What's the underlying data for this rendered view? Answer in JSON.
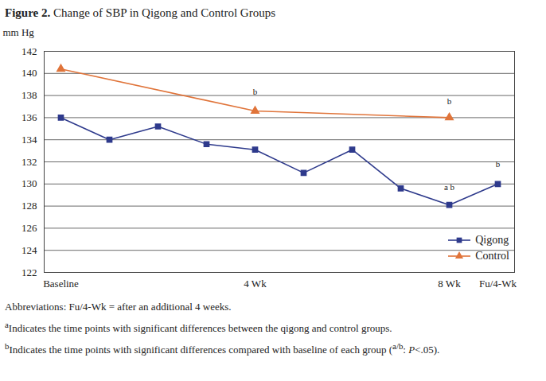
{
  "chart_data": {
    "type": "line",
    "title": [
      {
        "bold": "Figure 2."
      },
      {
        "text": " Change of SBP in Qigong and Control Groups"
      }
    ],
    "y_label": "mm Hg",
    "categories": [
      "Baseline",
      null,
      null,
      null,
      "4 Wk",
      null,
      null,
      null,
      "8 Wk",
      "Fu/4-Wk"
    ],
    "series": [
      {
        "name": "Qigong",
        "color": "#2e3a8c",
        "marker": "square",
        "values": [
          136,
          134,
          135.2,
          133.6,
          133.1,
          131,
          133.1,
          129.6,
          128.1,
          130
        ]
      },
      {
        "name": "Control",
        "color": "#e0743a",
        "marker": "triangle",
        "values": [
          140.4,
          null,
          null,
          null,
          136.6,
          null,
          null,
          null,
          136,
          null
        ]
      }
    ],
    "ylim": [
      122,
      142
    ],
    "yticks": [
      122,
      124,
      126,
      128,
      130,
      132,
      134,
      136,
      138,
      140,
      142
    ],
    "grid": true,
    "legend": "bottom-right",
    "annotations": [
      {
        "text": "b",
        "x": 4,
        "y": 138.3
      },
      {
        "text": "b",
        "x": 8,
        "y": 137.5
      },
      {
        "text": "a b",
        "x": 8,
        "y": 129.7
      },
      {
        "text": "b",
        "x": 9,
        "y": 131.8
      }
    ],
    "footnotes": [
      [
        {
          "text": "Abbreviations: Fu/4-Wk = after an additional 4 weeks."
        }
      ],
      [
        {
          "sup": "a"
        },
        {
          "text": "Indicates the time points with significant differences between the qigong and control groups."
        }
      ],
      [
        {
          "sup": "b"
        },
        {
          "text": "Indicates the time points with significant differences compared with baseline of each group ("
        },
        {
          "sup": "a/b"
        },
        {
          "text": ": "
        },
        {
          "italic": "P"
        },
        {
          "text": "<.05)."
        }
      ]
    ]
  }
}
